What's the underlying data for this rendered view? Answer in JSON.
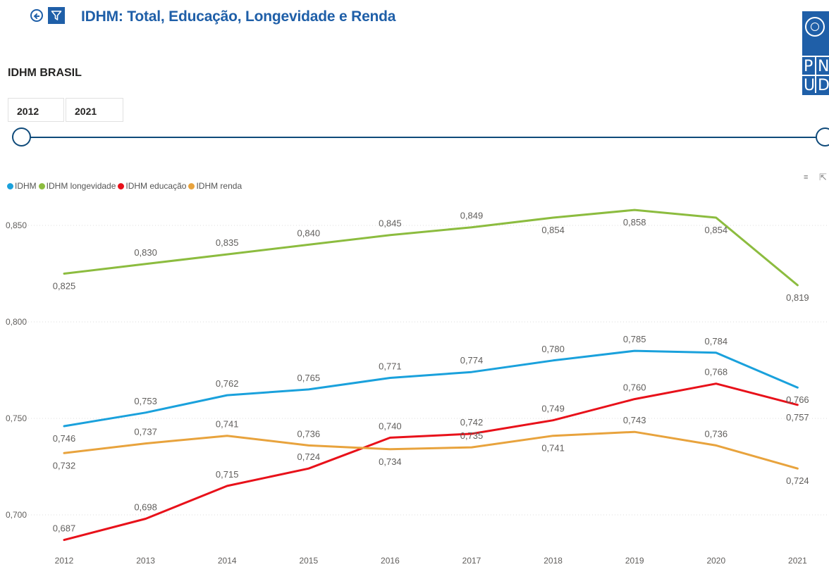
{
  "header": {
    "title": "IDHM: Total, Educação, Longevidade e Renda",
    "back_icon": "back-arrow-circle-icon",
    "filter_icon": "filter-icon",
    "logo_letters": [
      "P",
      "N",
      "U",
      "D"
    ]
  },
  "section": {
    "title": "IDHM BRASIL"
  },
  "slicer": {
    "start": "2012",
    "end": "2021",
    "range_min": 2012,
    "range_max": 2021
  },
  "colors": {
    "brand": "#1f5fa8",
    "slider": "#0f4a7a"
  },
  "chart_data": {
    "type": "line",
    "x": [
      "2012",
      "2013",
      "2014",
      "2015",
      "2016",
      "2017",
      "2018",
      "2019",
      "2020",
      "2021"
    ],
    "ylim": [
      0.68,
      0.87
    ],
    "yticks": [
      0.7,
      0.75,
      0.8,
      0.85
    ],
    "ytick_labels": [
      "0,700",
      "0,750",
      "0,800",
      "0,850"
    ],
    "grid": true,
    "legend_position": "top-left",
    "series": [
      {
        "name": "IDHM",
        "color": "#1aa1dc",
        "values": [
          0.746,
          0.753,
          0.762,
          0.765,
          0.771,
          0.774,
          0.78,
          0.785,
          0.784,
          0.766
        ],
        "labels": [
          "0,746",
          "0,753",
          "0,762",
          "0,765",
          "0,771",
          "0,774",
          "0,780",
          "0,785",
          "0,784",
          "0,766"
        ]
      },
      {
        "name": "IDHM longevidade",
        "color": "#8cbc3f",
        "values": [
          0.825,
          0.83,
          0.835,
          0.84,
          0.845,
          0.849,
          0.854,
          0.858,
          0.854,
          0.819
        ],
        "labels": [
          "0,825",
          "0,830",
          "0,835",
          "0,840",
          "0,845",
          "0,849",
          "0,854",
          "0,858",
          "0,854",
          "0,819"
        ]
      },
      {
        "name": "IDHM educação",
        "color": "#e8111a",
        "values": [
          0.687,
          0.698,
          0.715,
          0.724,
          0.74,
          0.742,
          0.749,
          0.76,
          0.768,
          0.757
        ],
        "labels": [
          "0,687",
          "0,698",
          "0,715",
          "0,724",
          "0,740",
          "0,742",
          "0,749",
          "0,760",
          "0,768",
          "0,757"
        ]
      },
      {
        "name": "IDHM renda",
        "color": "#e8a33d",
        "values": [
          0.732,
          0.737,
          0.741,
          0.736,
          0.734,
          0.735,
          0.741,
          0.743,
          0.736,
          0.724
        ],
        "labels": [
          "0,732",
          "0,737",
          "0,741",
          "0,736",
          "0,734",
          "0,735",
          "0,741",
          "0,743",
          "0,736",
          "0,724"
        ]
      }
    ]
  }
}
